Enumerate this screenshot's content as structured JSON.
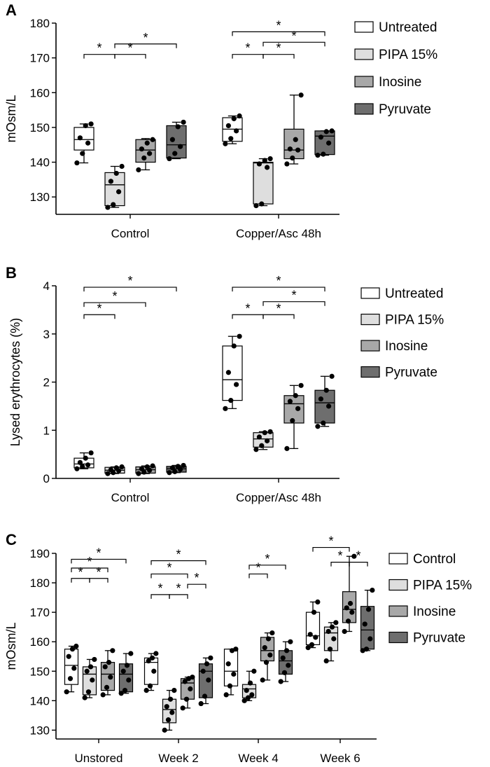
{
  "figure": {
    "box_colors": {
      "Untreated": "#ffffff",
      "Control": "#ffffff",
      "PIPA 15%": "#dedede",
      "Inosine": "#a8a8a8",
      "Pyruvate": "#6e6e6e"
    }
  },
  "chart_data": [
    {
      "panel": "A",
      "type": "box",
      "ylabel": "mOsm/L",
      "ylim": [
        125,
        180
      ],
      "yticks": [
        130,
        140,
        150,
        160,
        170,
        180
      ],
      "categories": [
        "Control",
        "Copper/Asc 48h"
      ],
      "legend": [
        "Untreated",
        "PIPA 15%",
        "Inosine",
        "Pyruvate"
      ],
      "legend_position": "right",
      "series": [
        {
          "name": "Untreated",
          "boxes": [
            {
              "min": 139.8,
              "q1": 143.5,
              "median": 146.5,
              "q3": 150.0,
              "max": 151.0,
              "points": [
                139.8,
                142.5,
                145.5,
                147.0,
                150.5,
                151.0
              ]
            },
            {
              "min": 145.3,
              "q1": 146.0,
              "median": 149.5,
              "q3": 152.8,
              "max": 153.3,
              "points": [
                145.3,
                146.8,
                149.0,
                150.5,
                152.5,
                153.3
              ]
            }
          ]
        },
        {
          "name": "PIPA 15%",
          "boxes": [
            {
              "min": 127.0,
              "q1": 127.5,
              "median": 133.5,
              "q3": 137.0,
              "max": 138.8,
              "points": [
                127.0,
                127.8,
                131.5,
                134.5,
                136.8,
                138.8
              ]
            },
            {
              "min": 127.5,
              "q1": 128.0,
              "median": 139.8,
              "q3": 140.0,
              "max": 141.0,
              "points": [
                127.5,
                128.0,
                138.5,
                139.5,
                140.5,
                141.0
              ]
            }
          ]
        },
        {
          "name": "Inosine",
          "boxes": [
            {
              "min": 137.8,
              "q1": 140.0,
              "median": 143.5,
              "q3": 146.5,
              "max": 146.8,
              "points": [
                137.8,
                141.2,
                142.5,
                143.8,
                145.5,
                146.5
              ]
            },
            {
              "min": 139.5,
              "q1": 141.0,
              "median": 143.5,
              "q3": 149.5,
              "max": 159.3,
              "points": [
                139.5,
                141.2,
                143.5,
                143.8,
                146.5,
                159.3
              ]
            }
          ]
        },
        {
          "name": "Pyruvate",
          "boxes": [
            {
              "min": 141.0,
              "q1": 141.2,
              "median": 145.0,
              "q3": 150.5,
              "max": 151.5,
              "points": [
                141.0,
                142.5,
                144.5,
                146.5,
                150.2,
                151.5
              ]
            },
            {
              "min": 142.0,
              "q1": 142.2,
              "median": 147.5,
              "q3": 149.0,
              "max": 149.0,
              "points": [
                142.0,
                142.3,
                145.5,
                147.2,
                148.8,
                149.0
              ]
            }
          ]
        }
      ],
      "significance": [
        {
          "group": 0,
          "from": 0,
          "to": 1,
          "y": 171,
          "label": "*"
        },
        {
          "group": 0,
          "from": 1,
          "to": 2,
          "y": 171,
          "label": "*"
        },
        {
          "group": 0,
          "from": 1,
          "to": 3,
          "y": 174,
          "label": "*"
        },
        {
          "group": 1,
          "from": 0,
          "to": 1,
          "y": 171,
          "label": "*"
        },
        {
          "group": 1,
          "from": 1,
          "to": 2,
          "y": 171,
          "label": "*"
        },
        {
          "group": 1,
          "from": 1,
          "to": 3,
          "y": 174.5,
          "label": "*"
        },
        {
          "group": 1,
          "from": 0,
          "to": 3,
          "y": 177.5,
          "label": "*"
        }
      ]
    },
    {
      "panel": "B",
      "type": "box",
      "ylabel": "Lysed erythrocytes (%)",
      "ylim": [
        0,
        4
      ],
      "yticks": [
        0,
        1,
        2,
        3,
        4
      ],
      "categories": [
        "Control",
        "Copper/Asc 48h"
      ],
      "legend": [
        "Untreated",
        "PIPA 15%",
        "Inosine",
        "Pyruvate"
      ],
      "legend_position": "right",
      "series": [
        {
          "name": "Untreated",
          "boxes": [
            {
              "min": 0.2,
              "q1": 0.22,
              "median": 0.3,
              "q3": 0.42,
              "max": 0.53,
              "points": [
                0.2,
                0.25,
                0.28,
                0.33,
                0.42,
                0.53
              ]
            },
            {
              "min": 1.45,
              "q1": 1.62,
              "median": 2.05,
              "q3": 2.75,
              "max": 2.95,
              "points": [
                1.45,
                1.62,
                1.95,
                2.2,
                2.75,
                2.95
              ]
            }
          ]
        },
        {
          "name": "PIPA 15%",
          "boxes": [
            {
              "min": 0.1,
              "q1": 0.11,
              "median": 0.17,
              "q3": 0.23,
              "max": 0.24,
              "points": [
                0.1,
                0.12,
                0.16,
                0.18,
                0.22,
                0.24
              ]
            },
            {
              "min": 0.6,
              "q1": 0.65,
              "median": 0.82,
              "q3": 0.95,
              "max": 0.97,
              "points": [
                0.6,
                0.68,
                0.78,
                0.86,
                0.95,
                0.97
              ]
            }
          ]
        },
        {
          "name": "Inosine",
          "boxes": [
            {
              "min": 0.1,
              "q1": 0.11,
              "median": 0.18,
              "q3": 0.24,
              "max": 0.26,
              "points": [
                0.1,
                0.13,
                0.17,
                0.2,
                0.24,
                0.26
              ]
            },
            {
              "min": 0.62,
              "q1": 1.15,
              "median": 1.55,
              "q3": 1.72,
              "max": 1.93,
              "points": [
                0.62,
                1.2,
                1.45,
                1.6,
                1.72,
                1.93
              ]
            }
          ]
        },
        {
          "name": "Pyruvate",
          "boxes": [
            {
              "min": 0.12,
              "q1": 0.13,
              "median": 0.2,
              "q3": 0.25,
              "max": 0.27,
              "points": [
                0.12,
                0.14,
                0.19,
                0.22,
                0.25,
                0.27
              ]
            },
            {
              "min": 1.08,
              "q1": 1.15,
              "median": 1.57,
              "q3": 1.83,
              "max": 2.12,
              "points": [
                1.08,
                1.15,
                1.5,
                1.65,
                1.83,
                2.12
              ]
            }
          ]
        }
      ],
      "significance": [
        {
          "group": 0,
          "from": 0,
          "to": 1,
          "y": 3.4,
          "label": "*"
        },
        {
          "group": 0,
          "from": 0,
          "to": 2,
          "y": 3.65,
          "label": "*"
        },
        {
          "group": 0,
          "from": 0,
          "to": 3,
          "y": 3.97,
          "label": "*"
        },
        {
          "group": 1,
          "from": 0,
          "to": 1,
          "y": 3.4,
          "label": "*"
        },
        {
          "group": 1,
          "from": 1,
          "to": 2,
          "y": 3.4,
          "label": "*"
        },
        {
          "group": 1,
          "from": 1,
          "to": 3,
          "y": 3.67,
          "label": "*"
        },
        {
          "group": 1,
          "from": 0,
          "to": 3,
          "y": 3.97,
          "label": "*"
        }
      ]
    },
    {
      "panel": "C",
      "type": "box",
      "ylabel": "mOsm/L",
      "ylim": [
        127,
        190
      ],
      "yticks": [
        130,
        140,
        150,
        160,
        170,
        180,
        190
      ],
      "categories": [
        "Unstored",
        "Week 2",
        "Week 4",
        "Week 6"
      ],
      "legend": [
        "Control",
        "PIPA 15%",
        "Inosine",
        "Pyruvate"
      ],
      "legend_position": "right",
      "series": [
        {
          "name": "Control",
          "boxes": [
            {
              "min": 143.0,
              "q1": 145.5,
              "median": 152.0,
              "q3": 157.5,
              "max": 158.5,
              "points": [
                143.0,
                147.5,
                151.0,
                155.0,
                157.5,
                158.5
              ]
            },
            {
              "min": 143.5,
              "q1": 145.5,
              "median": 153.0,
              "q3": 154.5,
              "max": 156.0,
              "points": [
                143.5,
                145.0,
                150.0,
                153.5,
                154.5,
                156.0
              ]
            },
            {
              "min": 142.0,
              "q1": 145.0,
              "median": 150.0,
              "q3": 157.5,
              "max": 157.5,
              "points": [
                142.0,
                145.0,
                149.0,
                152.5,
                157.0,
                157.5
              ]
            },
            {
              "min": 158.0,
              "q1": 159.0,
              "median": 162.0,
              "q3": 170.0,
              "max": 173.5,
              "points": [
                158.0,
                159.0,
                161.5,
                162.5,
                170.0,
                173.5
              ]
            }
          ]
        },
        {
          "name": "PIPA 15%",
          "boxes": [
            {
              "min": 141.0,
              "q1": 142.0,
              "median": 149.0,
              "q3": 151.5,
              "max": 154.0,
              "points": [
                141.0,
                143.0,
                147.0,
                150.0,
                151.5,
                154.0
              ]
            },
            {
              "min": 130.0,
              "q1": 132.5,
              "median": 137.0,
              "q3": 140.5,
              "max": 143.5,
              "points": [
                130.0,
                133.5,
                136.0,
                138.0,
                140.5,
                143.5
              ]
            },
            {
              "min": 140.0,
              "q1": 141.0,
              "median": 144.0,
              "q3": 145.5,
              "max": 150.0,
              "points": [
                140.0,
                141.0,
                142.0,
                143.5,
                146.0,
                150.0
              ]
            },
            {
              "min": 153.5,
              "q1": 157.0,
              "median": 163.0,
              "q3": 165.0,
              "max": 166.5,
              "points": [
                153.5,
                157.5,
                161.0,
                163.5,
                165.0,
                166.5
              ]
            }
          ]
        },
        {
          "name": "Inosine",
          "boxes": [
            {
              "min": 142.0,
              "q1": 143.5,
              "median": 149.0,
              "q3": 153.0,
              "max": 157.0,
              "points": [
                142.0,
                144.5,
                148.0,
                151.5,
                153.0,
                157.0
              ]
            },
            {
              "min": 137.5,
              "q1": 140.5,
              "median": 146.0,
              "q3": 147.5,
              "max": 148.0,
              "points": [
                137.5,
                140.5,
                144.0,
                146.5,
                147.5,
                148.0
              ]
            },
            {
              "min": 147.0,
              "q1": 153.5,
              "median": 157.0,
              "q3": 161.5,
              "max": 163.0,
              "points": [
                147.0,
                153.0,
                155.5,
                158.0,
                161.0,
                163.0
              ]
            },
            {
              "min": 163.5,
              "q1": 166.5,
              "median": 171.0,
              "q3": 177.0,
              "max": 189.0,
              "points": [
                163.5,
                167.0,
                170.0,
                171.5,
                173.0,
                189.0
              ]
            }
          ]
        },
        {
          "name": "Pyruvate",
          "boxes": [
            {
              "min": 142.5,
              "q1": 143.0,
              "median": 149.0,
              "q3": 152.5,
              "max": 156.0,
              "points": [
                142.5,
                143.5,
                147.0,
                150.0,
                152.0,
                156.0
              ]
            },
            {
              "min": 139.0,
              "q1": 141.0,
              "median": 150.0,
              "q3": 152.5,
              "max": 154.5,
              "points": [
                139.0,
                141.5,
                147.0,
                150.0,
                152.5,
                154.5
              ]
            },
            {
              "min": 146.5,
              "q1": 149.0,
              "median": 153.5,
              "q3": 157.0,
              "max": 160.0,
              "points": [
                146.5,
                149.5,
                152.0,
                154.5,
                157.0,
                160.0
              ]
            },
            {
              "min": 157.0,
              "q1": 157.5,
              "median": 164.0,
              "q3": 172.0,
              "max": 177.5,
              "points": [
                157.0,
                157.5,
                161.0,
                166.0,
                171.0,
                177.5
              ]
            }
          ]
        }
      ],
      "significance": [
        {
          "group": 0,
          "from": 0,
          "to": 1,
          "y": 181.5,
          "label": "*"
        },
        {
          "group": 0,
          "from": 1,
          "to": 2,
          "y": 181.5,
          "label": "*"
        },
        {
          "group": 0,
          "from": 0,
          "to": 2,
          "y": 185,
          "label": "*"
        },
        {
          "group": 0,
          "from": 0,
          "to": 3,
          "y": 188,
          "label": "*"
        },
        {
          "group": 1,
          "from": 0,
          "to": 1,
          "y": 176,
          "label": "*"
        },
        {
          "group": 1,
          "from": 1,
          "to": 2,
          "y": 176,
          "label": "*"
        },
        {
          "group": 1,
          "from": 2,
          "to": 3,
          "y": 179.5,
          "label": "*"
        },
        {
          "group": 1,
          "from": 0,
          "to": 2,
          "y": 183,
          "label": "*"
        },
        {
          "group": 1,
          "from": 0,
          "to": 3,
          "y": 187.5,
          "label": "*"
        },
        {
          "group": 2,
          "from": 2,
          "to": 1,
          "y": 183,
          "label": "*"
        },
        {
          "group": 2,
          "from": 1,
          "to": 3,
          "y": 186,
          "label": "*"
        },
        {
          "group": 3,
          "from": 0,
          "to": 2,
          "y": 192,
          "label": "*"
        },
        {
          "group": 3,
          "from": 1,
          "to": 2,
          "y": 187,
          "label": "*"
        },
        {
          "group": 3,
          "from": 2,
          "to": 3,
          "y": 187,
          "label": "*"
        }
      ]
    }
  ]
}
